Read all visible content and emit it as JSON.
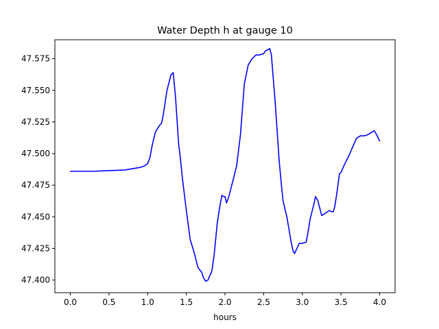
{
  "chart_data": {
    "type": "line",
    "title": "Water Depth h at gauge 10",
    "xlabel": "hours",
    "ylabel": "",
    "xlim": [
      -0.2,
      4.2
    ],
    "ylim": [
      47.39,
      47.59
    ],
    "xticks": [
      0.0,
      0.5,
      1.0,
      1.5,
      2.0,
      2.5,
      3.0,
      3.5,
      4.0
    ],
    "xtick_labels": [
      "0.0",
      "0.5",
      "1.0",
      "1.5",
      "2.0",
      "2.5",
      "3.0",
      "3.5",
      "4.0"
    ],
    "yticks": [
      47.4,
      47.425,
      47.45,
      47.475,
      47.5,
      47.525,
      47.55,
      47.575
    ],
    "ytick_labels": [
      "47.400",
      "47.425",
      "47.450",
      "47.475",
      "47.500",
      "47.525",
      "47.550",
      "47.575"
    ],
    "grid": false,
    "color": "#0000ff",
    "series": [
      {
        "x": [
          0.0,
          0.3,
          0.5,
          0.7,
          0.8,
          0.9,
          0.95,
          1.0,
          1.03,
          1.06,
          1.1,
          1.15,
          1.18,
          1.2,
          1.25,
          1.3,
          1.33,
          1.36,
          1.4,
          1.42,
          1.45,
          1.5,
          1.55,
          1.6,
          1.65,
          1.7,
          1.72,
          1.75,
          1.78,
          1.8,
          1.83,
          1.86,
          1.9,
          1.93,
          1.96,
          1.98,
          2.0,
          2.02,
          2.05,
          2.1,
          2.15,
          2.2,
          2.25,
          2.3,
          2.35,
          2.4,
          2.45,
          2.5,
          2.52,
          2.55,
          2.58,
          2.6,
          2.65,
          2.7,
          2.73,
          2.75,
          2.78,
          2.8,
          2.85,
          2.88,
          2.9,
          2.93,
          2.96,
          3.0,
          3.05,
          3.08,
          3.1,
          3.15,
          3.17,
          3.2,
          3.25,
          3.28,
          3.3,
          3.35,
          3.38,
          3.4,
          3.42,
          3.45,
          3.48,
          3.5,
          3.55,
          3.6,
          3.65,
          3.7,
          3.75,
          3.8,
          3.85,
          3.9,
          3.93,
          3.96,
          4.0
        ],
        "y": [
          47.486,
          47.486,
          47.4865,
          47.487,
          47.488,
          47.489,
          47.49,
          47.492,
          47.497,
          47.507,
          47.517,
          47.522,
          47.524,
          47.53,
          47.55,
          47.562,
          47.564,
          47.545,
          47.508,
          47.498,
          47.48,
          47.455,
          47.432,
          47.422,
          47.41,
          47.406,
          47.402,
          47.399,
          47.4,
          47.403,
          47.407,
          47.42,
          47.445,
          47.457,
          47.467,
          47.466,
          47.466,
          47.461,
          47.466,
          47.478,
          47.49,
          47.515,
          47.555,
          47.57,
          47.575,
          47.578,
          47.578,
          47.579,
          47.581,
          47.582,
          47.583,
          47.578,
          47.54,
          47.495,
          47.475,
          47.463,
          47.455,
          47.45,
          47.432,
          47.423,
          47.421,
          47.425,
          47.429,
          47.429,
          47.43,
          47.44,
          47.448,
          47.46,
          47.466,
          47.463,
          47.451,
          47.452,
          47.453,
          47.455,
          47.454,
          47.454,
          47.458,
          47.47,
          47.484,
          47.485,
          47.492,
          47.498,
          47.505,
          47.512,
          47.514,
          47.514,
          47.515,
          47.517,
          47.518,
          47.515,
          47.51
        ]
      }
    ]
  }
}
